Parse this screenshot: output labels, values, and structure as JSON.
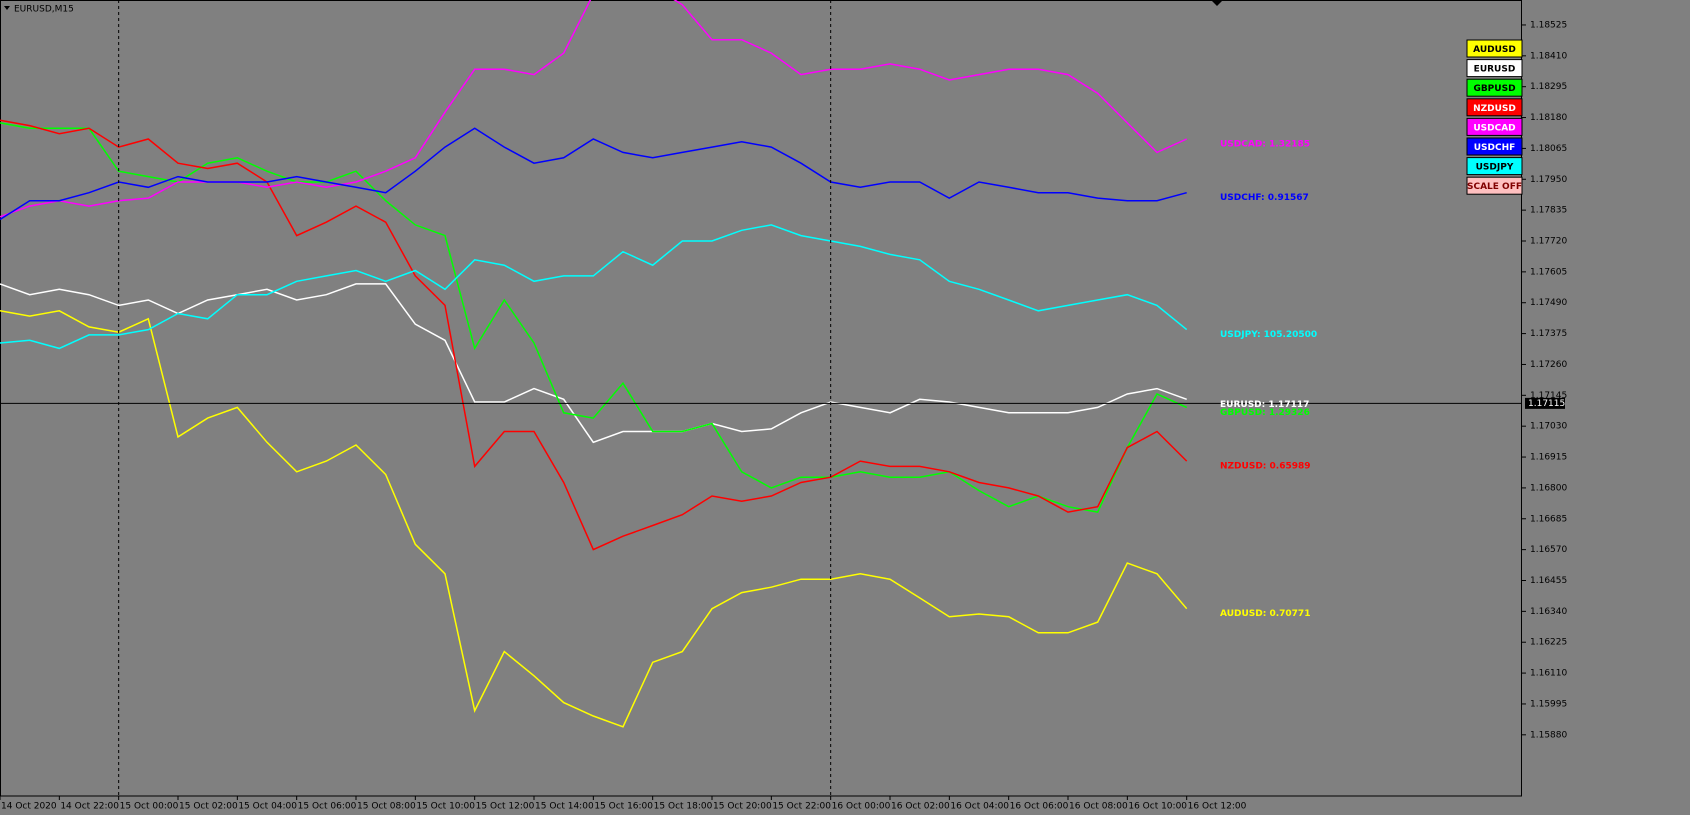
{
  "chart_data": {
    "type": "line",
    "title": "EURUSD,M15",
    "categories": [
      "14 Oct 2020",
      null,
      "14 Oct 22:00",
      null,
      "15 Oct 00:00",
      null,
      "15 Oct 02:00",
      null,
      "15 Oct 04:00",
      null,
      "15 Oct 06:00",
      null,
      "15 Oct 08:00",
      null,
      "15 Oct 10:00",
      null,
      "15 Oct 12:00",
      null,
      "15 Oct 14:00",
      null,
      "15 Oct 16:00",
      null,
      "15 Oct 18:00",
      null,
      "15 Oct 20:00",
      null,
      "15 Oct 22:00",
      null,
      "16 Oct 00:00",
      null,
      "16 Oct 02:00",
      null,
      "16 Oct 04:00",
      null,
      "16 Oct 06:00",
      null,
      "16 Oct 08:00",
      null,
      "16 Oct 10:00",
      null,
      "16 Oct 12:00"
    ],
    "series": [
      {
        "name": "AUDUSD",
        "color": "#ffff00",
        "end_label": "AUDUSD: 0.70771",
        "values": [
          1.1746,
          1.1744,
          1.1746,
          1.174,
          1.1738,
          1.1743,
          1.1699,
          1.1706,
          1.171,
          1.1697,
          1.1686,
          1.169,
          1.1696,
          1.1685,
          1.1659,
          1.1648,
          1.1597,
          1.1619,
          1.161,
          1.16,
          1.1595,
          1.1591,
          1.1615,
          1.1619,
          1.1635,
          1.1641,
          1.1643,
          1.1646,
          1.1646,
          1.1648,
          1.1646,
          1.1639,
          1.1632,
          1.1633,
          1.1632,
          1.1626,
          1.1626,
          1.163,
          1.1652,
          1.1648,
          1.1635
        ]
      },
      {
        "name": "EURUSD",
        "color": "#ffffff",
        "end_label": "EURUSD: 1.17117",
        "values": [
          1.1756,
          1.1752,
          1.1754,
          1.1752,
          1.1748,
          1.175,
          1.1745,
          1.175,
          1.1752,
          1.1754,
          1.175,
          1.1752,
          1.1756,
          1.1756,
          1.1741,
          1.1735,
          1.1712,
          1.1712,
          1.1717,
          1.1713,
          1.1697,
          1.1701,
          1.1701,
          1.1701,
          1.1704,
          1.1701,
          1.1702,
          1.1708,
          1.1712,
          1.171,
          1.1708,
          1.1713,
          1.1712,
          1.171,
          1.1708,
          1.1708,
          1.1708,
          1.171,
          1.1715,
          1.1717,
          1.1713
        ]
      },
      {
        "name": "GBPUSD",
        "color": "#00ff00",
        "end_label": "GBPUSD: 1.29326",
        "values": [
          1.1816,
          1.1814,
          1.1814,
          1.1814,
          1.1798,
          1.1796,
          1.1794,
          1.1801,
          1.1803,
          1.1798,
          1.1794,
          1.1794,
          1.1798,
          1.1787,
          1.1778,
          1.1774,
          1.1732,
          1.175,
          1.1734,
          1.1708,
          1.1706,
          1.1719,
          1.1701,
          1.1701,
          1.1704,
          1.1686,
          1.168,
          1.1684,
          1.1684,
          1.1686,
          1.1684,
          1.1684,
          1.1686,
          1.1679,
          1.1673,
          1.1677,
          1.1673,
          1.1671,
          1.1695,
          1.1715,
          1.171
        ]
      },
      {
        "name": "NZDUSD",
        "color": "#ff0000",
        "end_label": "NZDUSD: 0.65989",
        "values": [
          1.1817,
          1.1815,
          1.1812,
          1.1814,
          1.1807,
          1.181,
          1.1801,
          1.1799,
          1.1801,
          1.1794,
          1.1774,
          1.1779,
          1.1785,
          1.1779,
          1.1759,
          1.1748,
          1.1688,
          1.1701,
          1.1701,
          1.1682,
          1.1657,
          1.1662,
          1.1666,
          1.167,
          1.1677,
          1.1675,
          1.1677,
          1.1682,
          1.1684,
          1.169,
          1.1688,
          1.1688,
          1.1686,
          1.1682,
          1.168,
          1.1677,
          1.1671,
          1.1673,
          1.1695,
          1.1701,
          1.169
        ]
      },
      {
        "name": "USDCAD",
        "color": "#ff00ff",
        "end_label": "USDCAD: 1.32185",
        "values": [
          1.1781,
          1.1785,
          1.1787,
          1.1785,
          1.1787,
          1.1788,
          1.1794,
          1.1794,
          1.1794,
          1.1792,
          1.1794,
          1.1792,
          1.1794,
          1.1798,
          1.1803,
          1.182,
          1.1836,
          1.1836,
          1.1834,
          1.1842,
          1.1864,
          1.1867,
          1.1867,
          1.186,
          1.1847,
          1.1847,
          1.1842,
          1.1834,
          1.1836,
          1.1836,
          1.1838,
          1.1836,
          1.1832,
          1.1834,
          1.1836,
          1.1836,
          1.1834,
          1.1827,
          1.1816,
          1.1805,
          1.181
        ]
      },
      {
        "name": "USDCHF",
        "color": "#0000ff",
        "end_label": "USDCHF: 0.91567",
        "values": [
          1.178,
          1.1787,
          1.1787,
          1.179,
          1.1794,
          1.1792,
          1.1796,
          1.1794,
          1.1794,
          1.1794,
          1.1796,
          1.1794,
          1.1792,
          1.179,
          1.1798,
          1.1807,
          1.1814,
          1.1807,
          1.1801,
          1.1803,
          1.181,
          1.1805,
          1.1803,
          1.1805,
          1.1807,
          1.1809,
          1.1807,
          1.1801,
          1.1794,
          1.1792,
          1.1794,
          1.1794,
          1.1788,
          1.1794,
          1.1792,
          1.179,
          1.179,
          1.1788,
          1.1787,
          1.1787,
          1.179
        ]
      },
      {
        "name": "USDJPY",
        "color": "#00ffff",
        "end_label": "USDJPY: 105.20500",
        "values": [
          1.1734,
          1.1735,
          1.1732,
          1.1737,
          1.1737,
          1.1739,
          1.1745,
          1.1743,
          1.1752,
          1.1752,
          1.1757,
          1.1759,
          1.1761,
          1.1757,
          1.1761,
          1.1754,
          1.1765,
          1.1763,
          1.1757,
          1.1759,
          1.1759,
          1.1768,
          1.1763,
          1.1772,
          1.1772,
          1.1776,
          1.1778,
          1.1774,
          1.1772,
          1.177,
          1.1767,
          1.1765,
          1.1757,
          1.1754,
          1.175,
          1.1746,
          1.1748,
          1.175,
          1.1752,
          1.1748,
          1.1739
        ]
      }
    ],
    "scale_button": "SCALE OFF",
    "current_price": 1.17115,
    "ylim": [
      1.15652,
      1.18618
    ],
    "yticks": [
      1.18525,
      {
        "value": 1.1841,
        "label": "1.18410"
      },
      1.18295,
      {
        "value": 1.1818,
        "label": "1.18180"
      },
      1.18065,
      {
        "value": 1.1795,
        "label": "1.17950"
      },
      1.17835,
      {
        "value": 1.1772,
        "label": "1.17720"
      },
      1.17605,
      {
        "value": 1.1749,
        "label": "1.17490"
      },
      1.17375,
      {
        "value": 1.1726,
        "label": "1.17260"
      },
      1.17145,
      {
        "value": 1.1703,
        "label": "1.17030"
      },
      1.16915,
      {
        "value": 1.168,
        "label": "1.16800"
      },
      1.16685,
      {
        "value": 1.1657,
        "label": "1.16570"
      },
      1.16455,
      {
        "value": 1.1634,
        "label": "1.16340"
      },
      1.16225,
      {
        "value": 1.1611,
        "label": "1.16110"
      },
      1.15995,
      {
        "value": 1.1588,
        "label": "1.15880"
      }
    ]
  }
}
